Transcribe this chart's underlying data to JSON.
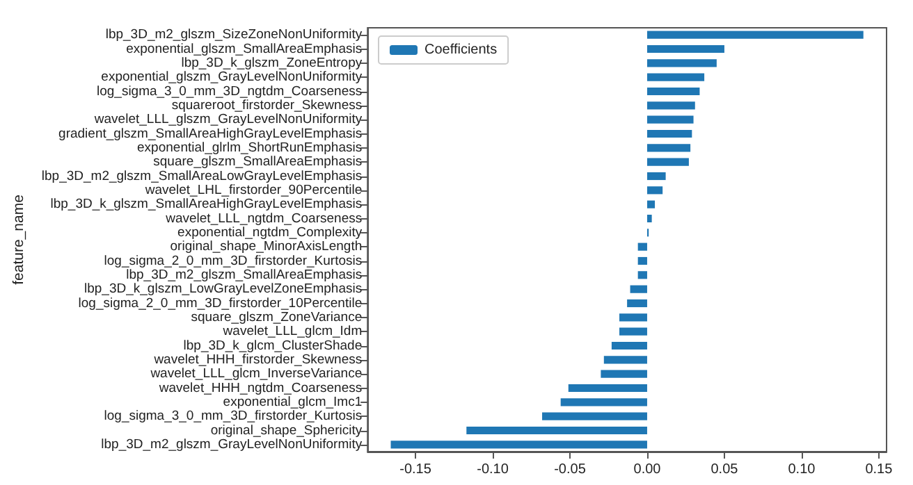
{
  "chart_data": {
    "type": "bar",
    "orientation": "horizontal",
    "categories": [
      "lbp_3D_m2_glszm_SizeZoneNonUniformity",
      "exponential_glszm_SmallAreaEmphasis",
      "lbp_3D_k_glszm_ZoneEntropy",
      "exponential_glszm_GrayLevelNonUniformity",
      "log_sigma_3_0_mm_3D_ngtdm_Coarseness",
      "squareroot_firstorder_Skewness",
      "wavelet_LLL_glszm_GrayLevelNonUniformity",
      "gradient_glszm_SmallAreaHighGrayLevelEmphasis",
      "exponential_glrlm_ShortRunEmphasis",
      "square_glszm_SmallAreaEmphasis",
      "lbp_3D_m2_glszm_SmallAreaLowGrayLevelEmphasis",
      "wavelet_LHL_firstorder_90Percentile",
      "lbp_3D_k_glszm_SmallAreaHighGrayLevelEmphasis",
      "wavelet_LLL_ngtdm_Coarseness",
      "exponential_ngtdm_Complexity",
      "original_shape_MinorAxisLength",
      "log_sigma_2_0_mm_3D_firstorder_Kurtosis",
      "lbp_3D_m2_glszm_SmallAreaEmphasis",
      "lbp_3D_k_glszm_LowGrayLevelZoneEmphasis",
      "log_sigma_2_0_mm_3D_firstorder_10Percentile",
      "square_glszm_ZoneVariance",
      "wavelet_LLL_glcm_Idm",
      "lbp_3D_k_glcm_ClusterShade",
      "wavelet_HHH_firstorder_Skewness",
      "wavelet_LLL_glcm_InverseVariance",
      "wavelet_HHH_ngtdm_Coarseness",
      "exponential_glcm_Imc1",
      "log_sigma_3_0_mm_3D_firstorder_Kurtosis",
      "original_shape_Sphericity",
      "lbp_3D_m2_glszm_GrayLevelNonUniformity"
    ],
    "series": [
      {
        "name": "Coefficients",
        "color": "#1f77b4",
        "values": [
          0.14,
          0.05,
          0.045,
          0.037,
          0.034,
          0.031,
          0.03,
          0.029,
          0.028,
          0.027,
          0.012,
          0.01,
          0.005,
          0.003,
          0.001,
          -0.006,
          -0.006,
          -0.006,
          -0.011,
          -0.013,
          -0.018,
          -0.018,
          -0.023,
          -0.028,
          -0.03,
          -0.051,
          -0.056,
          -0.068,
          -0.117,
          -0.166
        ]
      }
    ],
    "ylabel": "feature_name",
    "xlim": [
      -0.181,
      0.155
    ],
    "xticks": [
      {
        "value": -0.15,
        "label": "-0.15"
      },
      {
        "value": -0.1,
        "label": "-0.10"
      },
      {
        "value": -0.05,
        "label": "-0.05"
      },
      {
        "value": 0,
        "label": "0.00"
      },
      {
        "value": 0.05,
        "label": "0.05"
      },
      {
        "value": 0.1,
        "label": "0.10"
      },
      {
        "value": 0.15,
        "label": "0.15"
      }
    ],
    "legend": "top left",
    "grid": false
  }
}
